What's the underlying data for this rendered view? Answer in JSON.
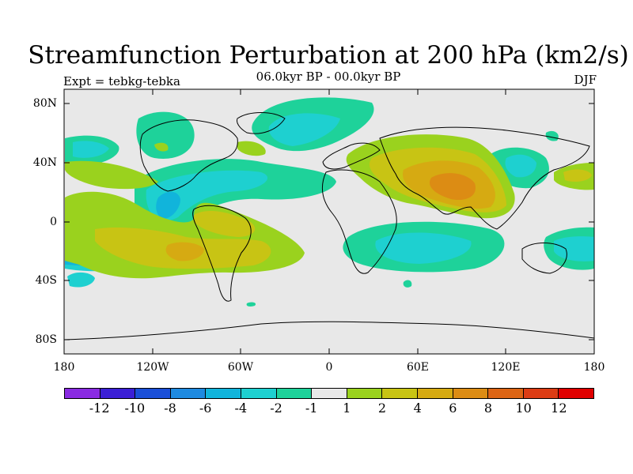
{
  "title": "Streamfunction Perturbation at 200 hPa (km2/s)",
  "subtitle": "06.0kyr BP - 00.0kyr BP",
  "experiment": "Expt = tebkg-tebka",
  "season": "DJF",
  "lat_labels": [
    "80N",
    "40N",
    "0",
    "40S",
    "80S"
  ],
  "lon_labels": [
    "180",
    "120W",
    "60W",
    "0",
    "60E",
    "120E",
    "180"
  ],
  "colorbar": {
    "colors": [
      "#8a2be2",
      "#3b1fd6",
      "#1a4fd8",
      "#1e8ae0",
      "#11b4db",
      "#1ed0d0",
      "#1ed29a",
      "#e8e8e8",
      "#9ad21e",
      "#c8c414",
      "#d6aa12",
      "#dc8c14",
      "#dc6414",
      "#dc3c14",
      "#e00000"
    ],
    "labels": [
      "-12",
      "-10",
      "-8",
      "-6",
      "-4",
      "-2",
      "-1",
      "1",
      "2",
      "4",
      "6",
      "8",
      "10",
      "12"
    ]
  },
  "colors": {
    "background": "#e8e8e8",
    "neg1": "#1ed29a",
    "neg2": "#1ed0d0",
    "neg3": "#11b4db",
    "pos1": "#9ad21e",
    "pos2": "#c8c414",
    "pos3": "#d6aa12",
    "pos4": "#dc8c14"
  }
}
